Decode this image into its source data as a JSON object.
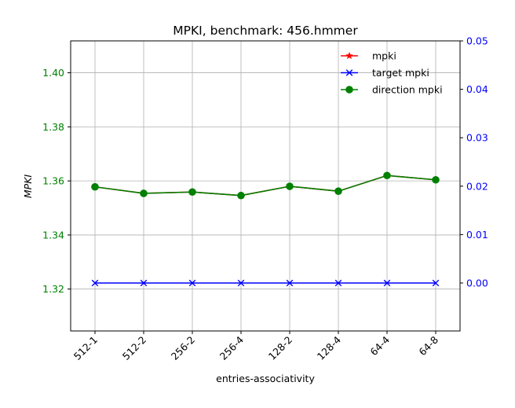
{
  "chart_data": {
    "type": "line",
    "title": "MPKI, benchmark: 456.hmmer",
    "xlabel": "entries-associativity",
    "ylabel": "MPKI",
    "categories": [
      "512-1",
      "512-2",
      "256-2",
      "256-4",
      "128-2",
      "128-4",
      "64-4",
      "64-8"
    ],
    "left_axis": {
      "ylim": [
        1.3045,
        1.4118
      ],
      "ticks": [
        1.32,
        1.34,
        1.36,
        1.38,
        1.4
      ],
      "tick_labels": [
        "1.32",
        "1.34",
        "1.36",
        "1.38",
        "1.40"
      ],
      "color": "#008000"
    },
    "right_axis": {
      "ylim": [
        -0.0099,
        0.05
      ],
      "ticks": [
        0.0,
        0.01,
        0.02,
        0.03,
        0.04,
        0.05
      ],
      "tick_labels": [
        "0.00",
        "0.01",
        "0.02",
        "0.03",
        "0.04",
        "0.05"
      ],
      "color": "#0000ff"
    },
    "grid": true,
    "legend_position": "top-right",
    "series": [
      {
        "name": "mpki",
        "axis": "left",
        "color": "#ff0000",
        "marker": "star",
        "values": [
          1.3578,
          1.3554,
          1.3559,
          1.3546,
          1.358,
          1.3562,
          1.362,
          1.3604
        ]
      },
      {
        "name": "target mpki",
        "axis": "right",
        "color": "#0000ff",
        "marker": "x",
        "values": [
          0.0,
          0.0,
          0.0,
          0.0,
          0.0,
          0.0,
          0.0,
          0.0
        ]
      },
      {
        "name": "direction mpki",
        "axis": "left",
        "color": "#008000",
        "marker": "circle",
        "values": [
          1.3578,
          1.3554,
          1.3559,
          1.3546,
          1.358,
          1.3562,
          1.362,
          1.3604
        ]
      }
    ]
  }
}
